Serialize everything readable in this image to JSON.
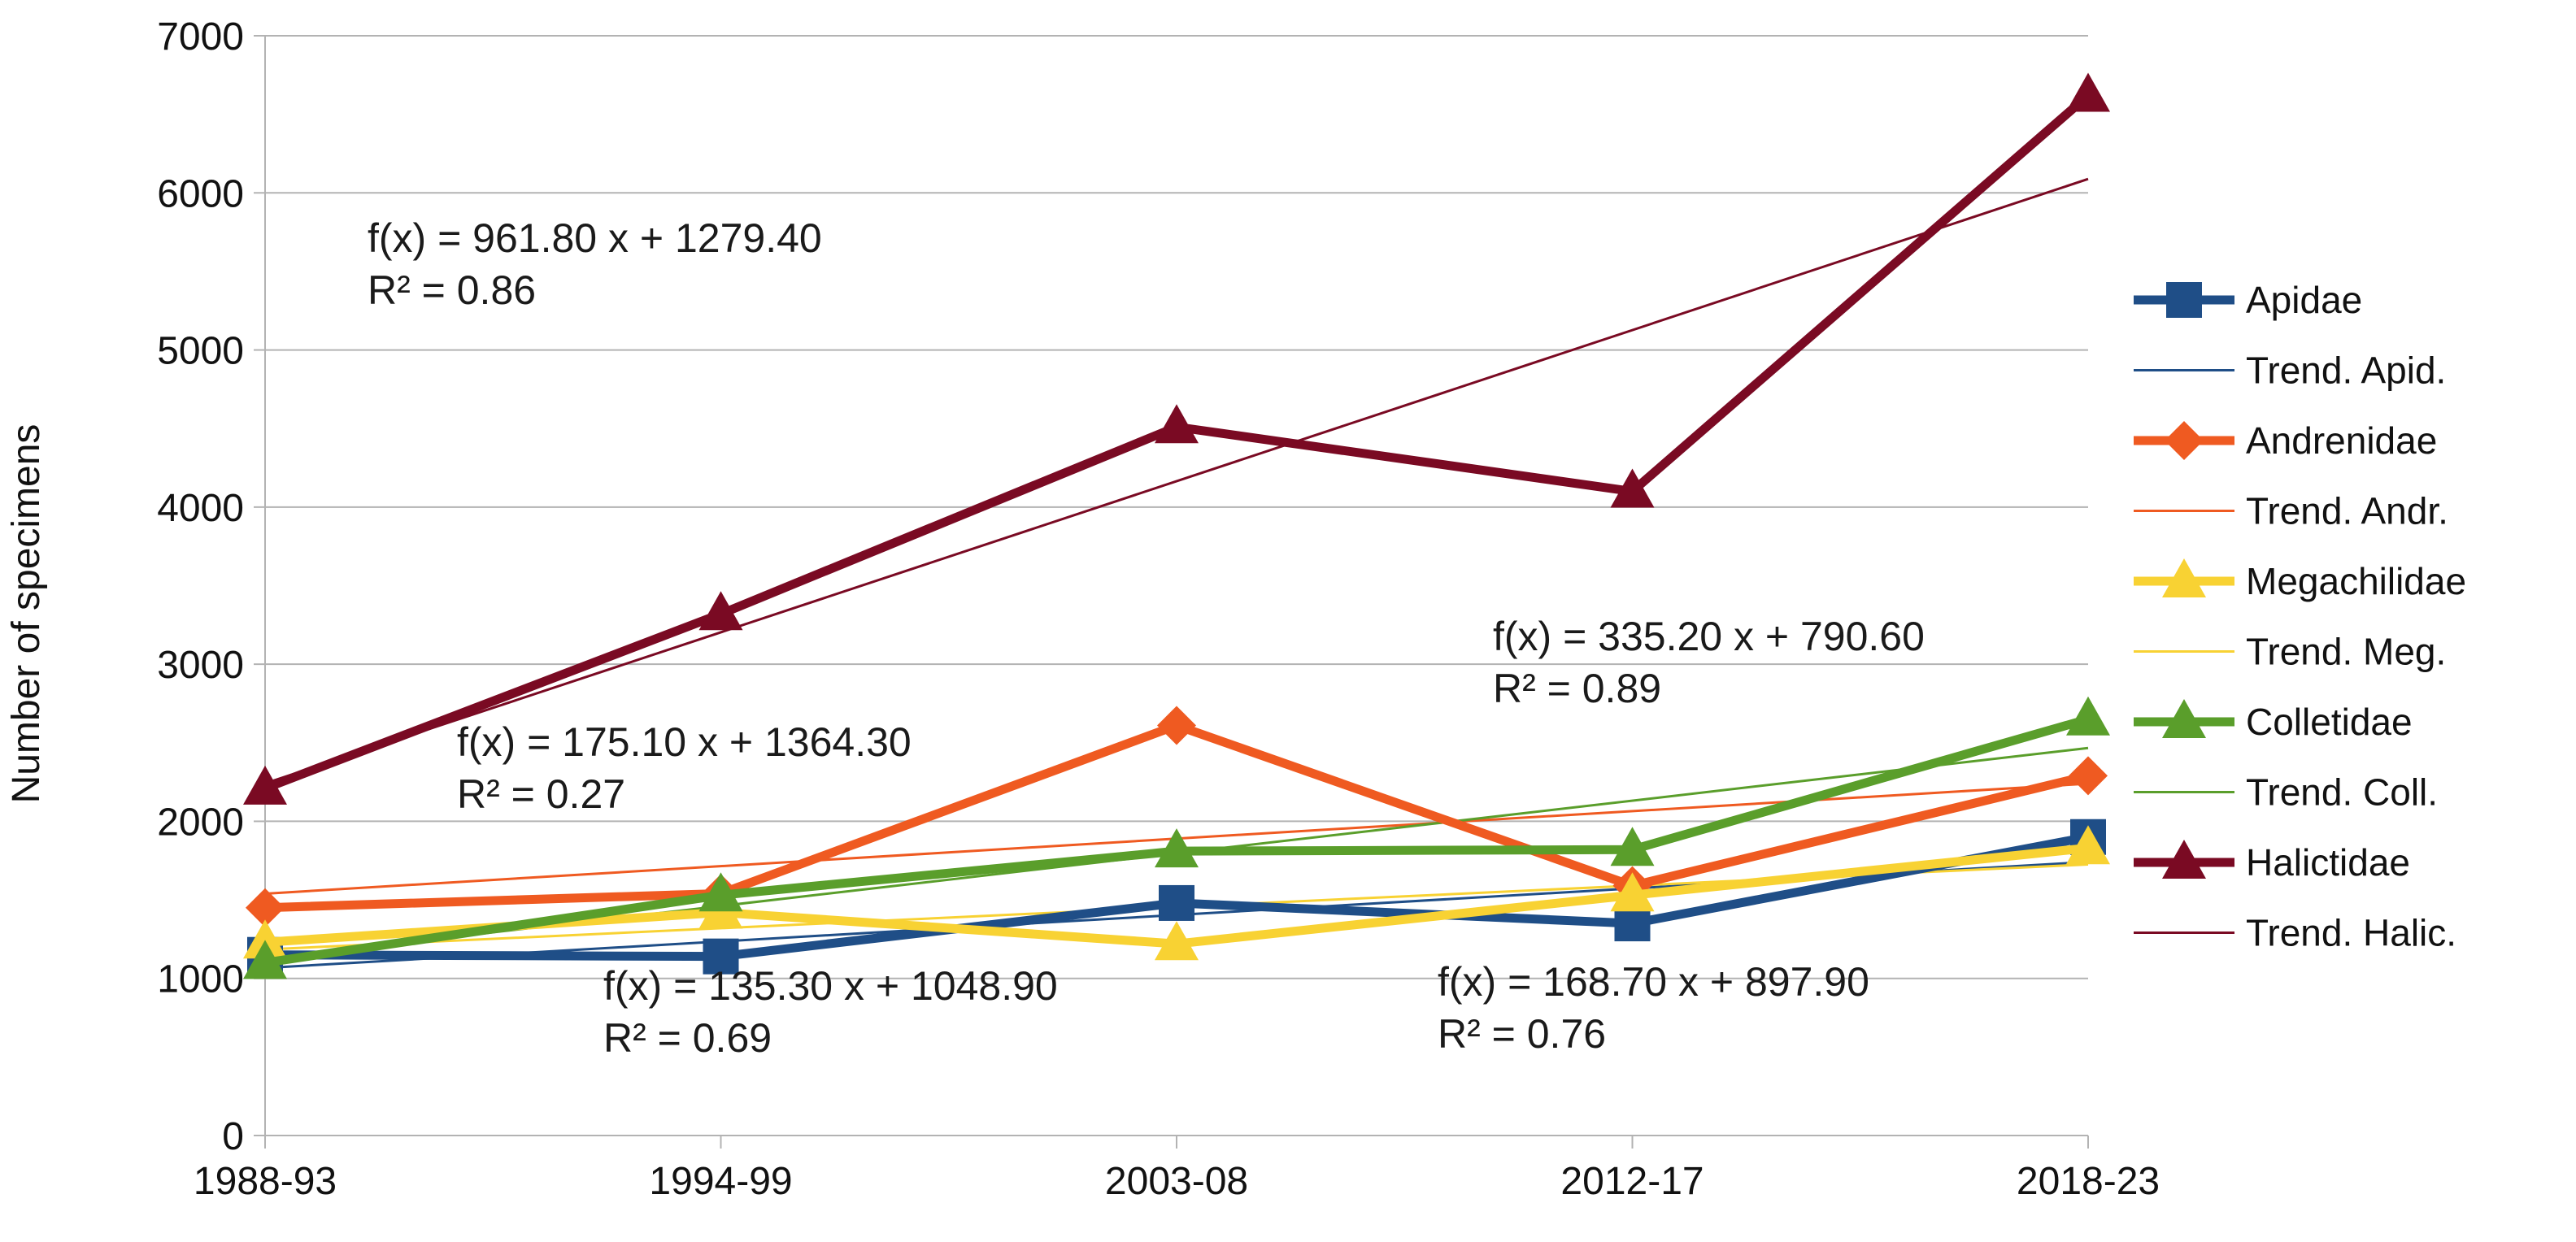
{
  "chart_data": {
    "type": "line",
    "title": "",
    "xlabel": "",
    "ylabel": "Number of specimens",
    "categories": [
      "1988-93",
      "1994-99",
      "2003-08",
      "2012-17",
      "2018-23"
    ],
    "ylim": [
      0,
      7000
    ],
    "yticks": [
      "0",
      "1000",
      "2000",
      "3000",
      "4000",
      "5000",
      "6000",
      "7000"
    ],
    "grid": "horizontal",
    "legend_position": "right",
    "series": [
      {
        "name": "Apidae",
        "color": "#1f4e87",
        "marker": "square",
        "values": [
          1150,
          1140,
          1480,
          1350,
          1900
        ]
      },
      {
        "name": "Andrenidae",
        "color": "#ef5a21",
        "marker": "diamond",
        "values": [
          1450,
          1540,
          2610,
          1590,
          2290
        ]
      },
      {
        "name": "Megachilidae",
        "color": "#f8d233",
        "marker": "triangle",
        "values": [
          1230,
          1420,
          1220,
          1530,
          1830
        ]
      },
      {
        "name": "Colletidae",
        "color": "#5a9e2b",
        "marker": "triangle",
        "values": [
          1100,
          1530,
          1810,
          1820,
          2650
        ]
      },
      {
        "name": "Halictidae",
        "color": "#7a0a23",
        "marker": "triangle",
        "values": [
          2210,
          3320,
          4510,
          4100,
          6620
        ]
      }
    ],
    "trends": [
      {
        "name": "Trend. Apid.",
        "color": "#1f4e87",
        "slope": 168.7,
        "intercept": 897.9,
        "equation": "f(x) = 168.70 x + 897.90",
        "r2": "R² = 0.76"
      },
      {
        "name": "Trend. Andr.",
        "color": "#ef5a21",
        "slope": 175.1,
        "intercept": 1364.3,
        "equation": "f(x) = 175.10 x + 1364.30",
        "r2": "R² = 0.27"
      },
      {
        "name": "Trend. Meg.",
        "color": "#f8d233",
        "slope": 135.3,
        "intercept": 1048.9,
        "equation": "f(x) = 135.30 x + 1048.90",
        "r2": "R² = 0.69"
      },
      {
        "name": "Trend. Coll.",
        "color": "#5a9e2b",
        "slope": 335.2,
        "intercept": 790.6,
        "equation": "f(x) = 335.20 x + 790.60",
        "r2": "R² = 0.89"
      },
      {
        "name": "Trend. Halic.",
        "color": "#7a0a23",
        "slope": 961.8,
        "intercept": 1279.4,
        "equation": "f(x) = 961.80 x + 1279.40",
        "r2": "R² = 0.86"
      }
    ],
    "legend": [
      "Apidae",
      "Trend. Apid.",
      "Andrenidae",
      "Trend. Andr.",
      "Megachilidae",
      "Trend. Meg.",
      "Colletidae",
      "Trend. Coll.",
      "Halictidae",
      "Trend. Halic."
    ]
  }
}
